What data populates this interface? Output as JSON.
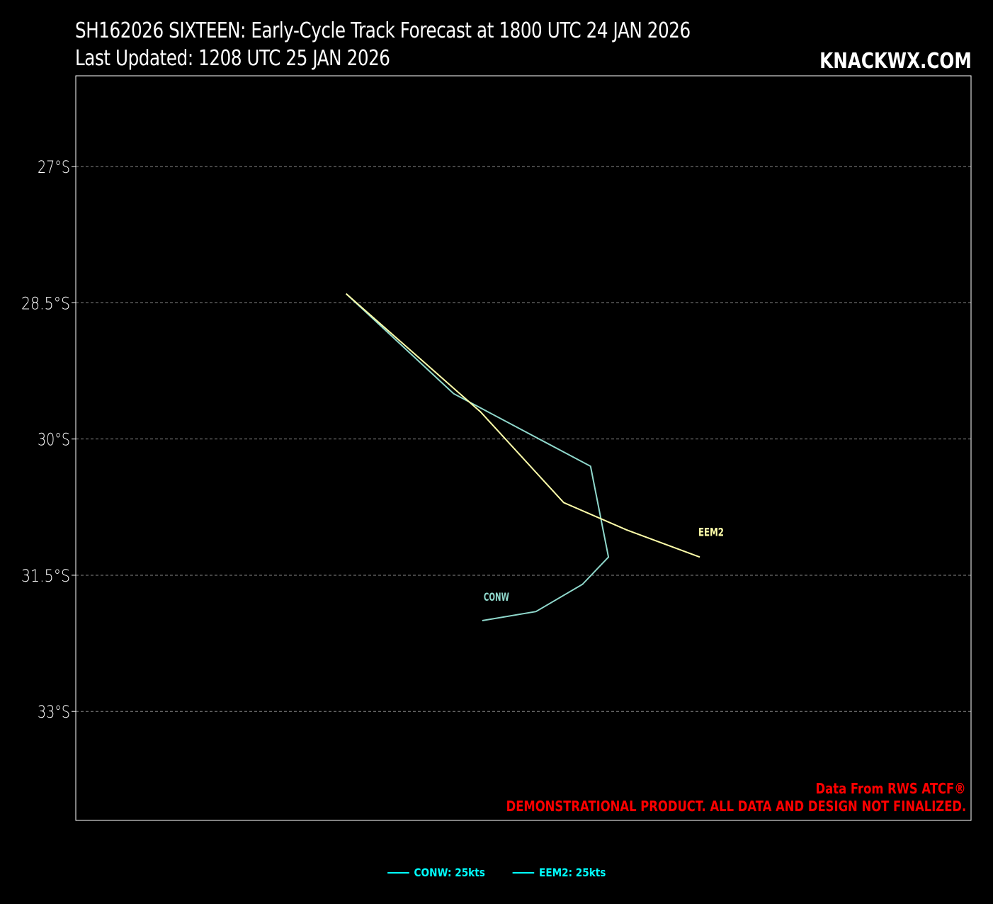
{
  "header": {
    "title_line1": "SH162026 SIXTEEN: Early-Cycle Track Forecast at 1800 UTC 24 JAN 2026",
    "title_line2": "Last Updated: 1208 UTC 25 JAN 2026",
    "brand": "KNACKWX.COM"
  },
  "credits": {
    "line1": "Data From RWS ATCF®",
    "line2": "DEMONSTRATIONAL PRODUCT. ALL DATA AND DESIGN NOT FINALIZED."
  },
  "colors": {
    "background": "#000000",
    "axes": "#ffffff",
    "grid": "#888888",
    "conw": "#8fd8cc",
    "eem2": "#ffffaa",
    "credit": "#ff0000",
    "legend": "#00ffff"
  },
  "chart_data": {
    "type": "line",
    "ylabel_ticks": [
      "27°S",
      "28.5°S",
      "30°S",
      "31.5°S",
      "33°S"
    ],
    "y_ticks_values": [
      -27,
      -28.5,
      -30,
      -31.5,
      -33
    ],
    "ylim": [
      -34.2,
      -26
    ],
    "xlim": [
      0,
      100
    ],
    "grid": "horizontal dashed",
    "legend_position": "bottom-center",
    "series": [
      {
        "name": "CONW",
        "color": "#8fd8cc",
        "lat": [
          -28.4,
          -29.5,
          -30.3,
          -31.3,
          -31.6,
          -31.9,
          -32.0
        ],
        "x": [
          30.2,
          42.2,
          57.5,
          59.5,
          56.6,
          51.4,
          45.4
        ]
      },
      {
        "name": "EEM2",
        "color": "#ffffaa",
        "lat": [
          -28.4,
          -29.7,
          -30.7,
          -31.0,
          -31.3
        ],
        "x": [
          30.2,
          45.2,
          54.5,
          61.5,
          69.7
        ]
      }
    ],
    "legend": [
      {
        "label": "CONW: 25kts"
      },
      {
        "label": "EEM2: 25kts"
      }
    ]
  }
}
